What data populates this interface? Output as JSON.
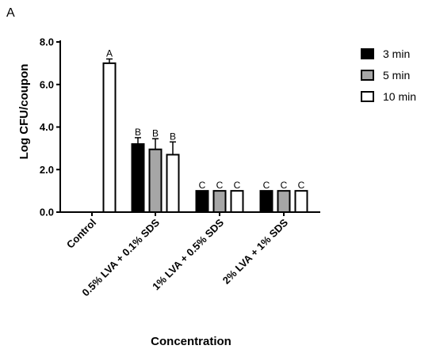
{
  "panel_label": "A",
  "chart_data": {
    "type": "bar",
    "categories": [
      "Control",
      "0.5% LVA + 0.1% SDS",
      "1% LVA + 0.5% SDS",
      "2% LVA + 1% SDS"
    ],
    "series": [
      {
        "name": "3 min",
        "color": "#000000",
        "values": [
          null,
          3.2,
          1.0,
          1.0
        ],
        "errors": [
          null,
          0.3,
          0.0,
          0.0
        ],
        "letters": [
          "",
          "B",
          "C",
          "C"
        ]
      },
      {
        "name": "5 min",
        "color": "#a6a6a6",
        "values": [
          null,
          2.95,
          1.0,
          1.0
        ],
        "errors": [
          null,
          0.5,
          0.0,
          0.0
        ],
        "letters": [
          "",
          "B",
          "C",
          "C"
        ]
      },
      {
        "name": "10 min",
        "color": "#ffffff",
        "values": [
          7.0,
          2.7,
          1.0,
          1.0
        ],
        "errors": [
          0.2,
          0.6,
          0.0,
          0.0
        ],
        "letters": [
          "A",
          "B",
          "C",
          "C"
        ]
      }
    ],
    "xlabel": "Concentration",
    "ylabel": "Log CFU/coupon",
    "ylim": [
      0,
      8
    ],
    "yticks": [
      "0.0",
      "2.0",
      "4.0",
      "6.0",
      "8.0"
    ],
    "ytick_values": [
      0,
      2,
      4,
      6,
      8
    ],
    "grid": false,
    "legend_position": "top-right"
  }
}
